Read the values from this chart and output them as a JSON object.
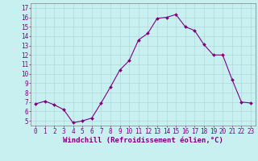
{
  "x": [
    0,
    1,
    2,
    3,
    4,
    5,
    6,
    7,
    8,
    9,
    10,
    11,
    12,
    13,
    14,
    15,
    16,
    17,
    18,
    19,
    20,
    21,
    22,
    23
  ],
  "y": [
    6.8,
    7.1,
    6.7,
    6.2,
    4.8,
    5.0,
    5.3,
    6.9,
    8.6,
    10.4,
    11.4,
    13.6,
    14.3,
    15.9,
    16.0,
    16.3,
    15.0,
    14.6,
    13.1,
    12.0,
    12.0,
    9.4,
    7.0,
    6.9
  ],
  "line_color": "#800080",
  "marker_color": "#800080",
  "bg_color": "#c8f0f0",
  "grid_color": "#b0d8d8",
  "xlabel": "Windchill (Refroidissement éolien,°C)",
  "yticks": [
    5,
    6,
    7,
    8,
    9,
    10,
    11,
    12,
    13,
    14,
    15,
    16,
    17
  ],
  "xlim": [
    -0.5,
    23.5
  ],
  "ylim": [
    4.5,
    17.5
  ],
  "tick_fontsize": 5.5,
  "xlabel_fontsize": 6.5,
  "line_width": 0.8,
  "marker_size": 2.0
}
